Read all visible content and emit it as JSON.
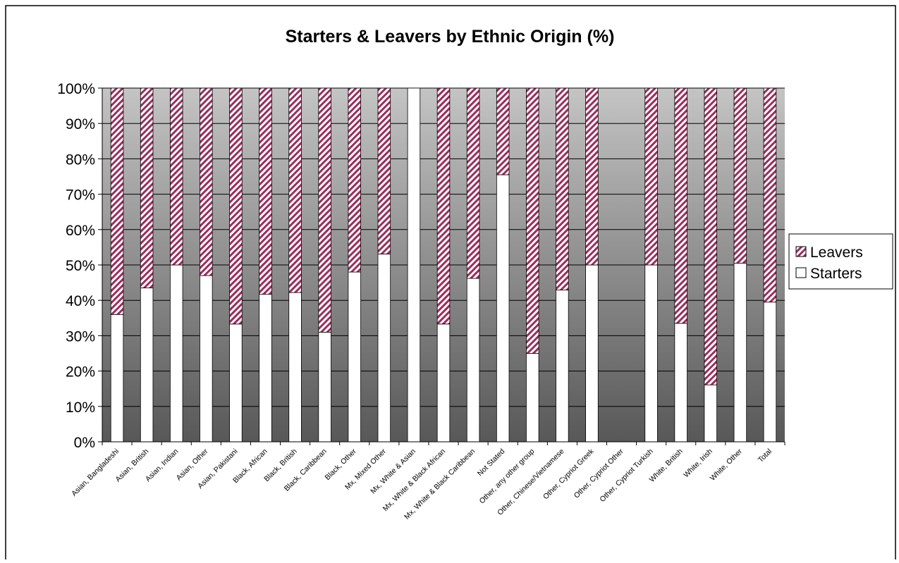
{
  "chart_data": {
    "type": "bar",
    "stacked": true,
    "percent_stacked": true,
    "title": "Starters & Leavers by Ethnic Origin (%)",
    "xlabel": "",
    "ylabel": "",
    "ylim": [
      0,
      100
    ],
    "ytick_step": 10,
    "yticks": [
      "0%",
      "10%",
      "20%",
      "30%",
      "40%",
      "50%",
      "60%",
      "70%",
      "80%",
      "90%",
      "100%"
    ],
    "grid": true,
    "legend_position": "right",
    "legend": [
      "Leavers",
      "Starters"
    ],
    "categories": [
      "Asian, Bangladeshi",
      "Asian, British",
      "Asian, Indian",
      "Asian, Other",
      "Asian, Pakistani",
      "Black, African",
      "Black, British",
      "Black, Caribbean",
      "Black, Other",
      "Mx, Mixed Other",
      "Mx, White & Asian",
      "Mx, White & Black African",
      "Mx, White & Black Caribbean",
      "Not Stated",
      "Other, any other group",
      "Other, Chinese/Vietnamese",
      "Other, Cypriot Greek",
      "Other, Cypriot Other",
      "Other, Cypriot Turkish",
      "White, British",
      "White, Irish",
      "White, Other",
      "Total"
    ],
    "series": [
      {
        "name": "Starters",
        "color": "#ffffff",
        "values": [
          36,
          43.5,
          50,
          47,
          33.3,
          41.7,
          42.2,
          31,
          48,
          53.1,
          100,
          33.3,
          46.2,
          75.5,
          25,
          42.9,
          50,
          0,
          50,
          33.5,
          16.1,
          50.5,
          39.5
        ]
      },
      {
        "name": "Leavers",
        "color": "#9c2c5c",
        "values": [
          64,
          56.5,
          50,
          53,
          66.7,
          58.3,
          57.8,
          69,
          52,
          46.9,
          0,
          66.7,
          53.8,
          24.5,
          75,
          57.1,
          50,
          0,
          50,
          66.5,
          83.9,
          49.5,
          60.5
        ]
      }
    ]
  }
}
